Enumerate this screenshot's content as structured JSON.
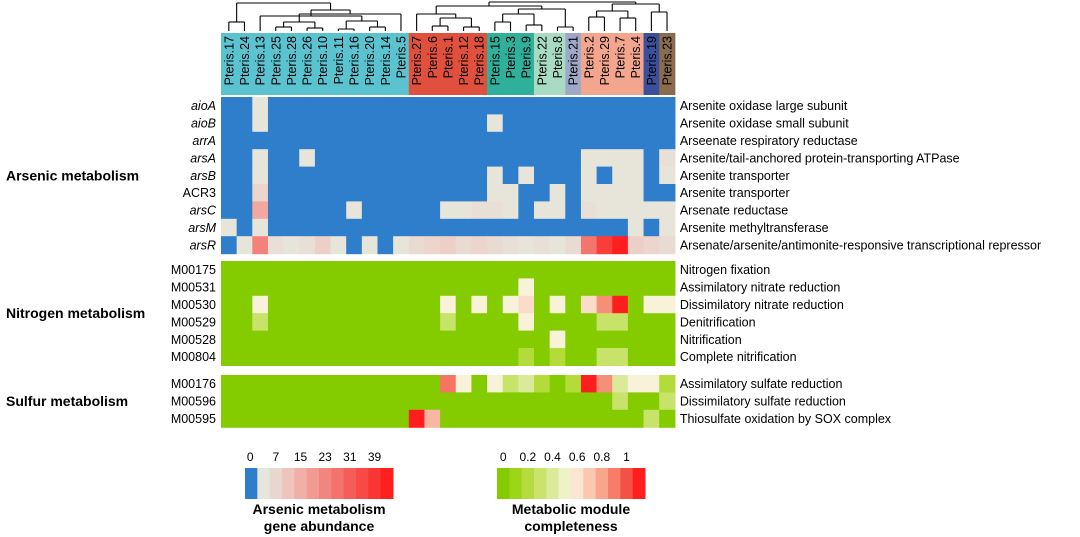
{
  "chart_data": {
    "type": "heatmap",
    "columns": [
      "Pteris.17",
      "Pteris.24",
      "Pteris.13",
      "Pteris.25",
      "Pteris.28",
      "Pteris.26",
      "Pteris.10",
      "Pteris.11",
      "Pteris.16",
      "Pteris.20",
      "Pteris.14",
      "Pteris.5",
      "Pteris.27",
      "Pteris.6",
      "Pteris.1",
      "Pteris.12",
      "Pteris.18",
      "Pteris.15",
      "Pteris.3",
      "Pteris.9",
      "Pteris.22",
      "Pteris.8",
      "Pteris.21",
      "Pteris.2",
      "Pteris.29",
      "Pteris.7",
      "Pteris.4",
      "Pteris.19",
      "Pteris.23"
    ],
    "column_group_colors": [
      "#5bc3cf",
      "#5bc3cf",
      "#5bc3cf",
      "#5bc3cf",
      "#5bc3cf",
      "#5bc3cf",
      "#5bc3cf",
      "#5bc3cf",
      "#5bc3cf",
      "#5bc3cf",
      "#5bc3cf",
      "#5bc3cf",
      "#e0503c",
      "#e0503c",
      "#e0503c",
      "#e0503c",
      "#e0503c",
      "#2fb09a",
      "#2fb09a",
      "#2fb09a",
      "#a8dcc2",
      "#a8dcc2",
      "#9fa8c9",
      "#f3a58e",
      "#f3a58e",
      "#f3a58e",
      "#f3a58e",
      "#3b4f9c",
      "#8a6b4e"
    ],
    "sections": [
      {
        "title": "Arsenic metabolism",
        "scale": "abundance",
        "rows": [
          {
            "id": "aioA",
            "italic": true,
            "description": "Arsenite oxidase large subunit",
            "values": [
              0,
              0,
              2,
              0,
              0,
              0,
              0,
              0,
              0,
              0,
              0,
              0,
              0,
              0,
              0,
              0,
              0,
              0,
              0,
              0,
              0,
              0,
              0,
              0,
              0,
              0,
              0,
              0,
              0
            ]
          },
          {
            "id": "aioB",
            "italic": true,
            "description": "Arsenite oxidase small subunit",
            "values": [
              0,
              0,
              2,
              0,
              0,
              0,
              0,
              0,
              0,
              0,
              0,
              0,
              0,
              0,
              0,
              0,
              0,
              2,
              0,
              0,
              0,
              0,
              0,
              0,
              0,
              0,
              0,
              0,
              0
            ]
          },
          {
            "id": "arrA",
            "italic": true,
            "description": "Arseenate respiratory reductase",
            "values": [
              0,
              0,
              0,
              0,
              0,
              0,
              0,
              0,
              0,
              0,
              0,
              0,
              0,
              0,
              0,
              0,
              0,
              0,
              0,
              0,
              0,
              0,
              0,
              0,
              0,
              0,
              0,
              0,
              0
            ]
          },
          {
            "id": "arsA",
            "italic": true,
            "description": "Arsenite/tail-anchored protein-transporting ATPase",
            "values": [
              0,
              0,
              2,
              0,
              0,
              2,
              0,
              0,
              0,
              0,
              0,
              0,
              0,
              0,
              0,
              0,
              0,
              0,
              0,
              0,
              0,
              0,
              0,
              2,
              2,
              2,
              2,
              0,
              4
            ]
          },
          {
            "id": "arsB",
            "italic": true,
            "description": "Arsenite transporter",
            "values": [
              0,
              0,
              2,
              0,
              0,
              0,
              0,
              0,
              0,
              0,
              0,
              0,
              0,
              0,
              0,
              0,
              0,
              2,
              0,
              2,
              0,
              0,
              0,
              2,
              0,
              2,
              2,
              0,
              2
            ]
          },
          {
            "id": "ACR3",
            "italic": false,
            "description": "Arsenite transporter",
            "values": [
              0,
              0,
              8,
              0,
              0,
              0,
              0,
              0,
              0,
              0,
              0,
              0,
              0,
              0,
              0,
              0,
              0,
              2,
              2,
              0,
              0,
              2,
              0,
              2,
              2,
              2,
              2,
              0,
              0
            ]
          },
          {
            "id": "arsC",
            "italic": true,
            "description": "Arsenate reductase",
            "values": [
              0,
              0,
              22,
              0,
              0,
              0,
              0,
              0,
              2,
              0,
              0,
              0,
              0,
              0,
              2,
              2,
              4,
              4,
              2,
              0,
              2,
              2,
              0,
              4,
              2,
              2,
              2,
              2,
              2
            ]
          },
          {
            "id": "arsM",
            "italic": true,
            "description": "Arsenite methyltransferase",
            "values": [
              2,
              0,
              2,
              0,
              0,
              0,
              0,
              0,
              0,
              0,
              0,
              0,
              0,
              0,
              0,
              0,
              0,
              0,
              0,
              0,
              0,
              0,
              0,
              0,
              0,
              0,
              2,
              0,
              2
            ]
          },
          {
            "id": "arsR",
            "italic": true,
            "description": "Arsenate/arsenite/antimonite-responsive transcriptional repressor",
            "values": [
              0,
              2,
              28,
              4,
              2,
              4,
              10,
              2,
              0,
              2,
              0,
              2,
              6,
              8,
              10,
              6,
              8,
              6,
              4,
              2,
              4,
              2,
              6,
              30,
              36,
              39,
              10,
              8,
              6
            ]
          }
        ]
      },
      {
        "title": "Nitrogen metabolism",
        "scale": "completeness",
        "rows": [
          {
            "id": "M00175",
            "italic": false,
            "description": "Nitrogen fixation",
            "values": [
              0,
              0,
              0,
              0,
              0,
              0,
              0,
              0,
              0,
              0,
              0,
              0,
              0,
              0,
              0,
              0,
              0,
              0,
              0,
              0,
              0,
              0,
              0,
              0,
              0,
              0,
              0,
              0,
              0
            ]
          },
          {
            "id": "M00531",
            "italic": false,
            "description": "Assimilatory nitrate reduction",
            "values": [
              0,
              0,
              0,
              0,
              0,
              0,
              0,
              0,
              0,
              0,
              0,
              0,
              0,
              0,
              0,
              0,
              0,
              0,
              0,
              0.5,
              0,
              0,
              0,
              0,
              0,
              0,
              0,
              0,
              0
            ]
          },
          {
            "id": "M00530",
            "italic": false,
            "description": "Dissimilatory nitrate reduction",
            "values": [
              0,
              0,
              0.5,
              0,
              0,
              0,
              0,
              0,
              0,
              0,
              0,
              0,
              0,
              0,
              0.5,
              0,
              0.5,
              0,
              0.5,
              0.6,
              0,
              0.5,
              0,
              0.6,
              0.8,
              1,
              0,
              0.5,
              0.5
            ]
          },
          {
            "id": "M00529",
            "italic": false,
            "description": "Denitrification",
            "values": [
              0,
              0,
              0.3,
              0,
              0,
              0,
              0,
              0,
              0,
              0,
              0,
              0,
              0,
              0,
              0.3,
              0,
              0,
              0,
              0,
              0.5,
              0,
              0,
              0,
              0,
              0.3,
              0.3,
              0,
              0,
              0
            ]
          },
          {
            "id": "M00528",
            "italic": false,
            "description": "Nitrification",
            "values": [
              0,
              0,
              0,
              0,
              0,
              0,
              0,
              0,
              0,
              0,
              0,
              0,
              0,
              0,
              0,
              0,
              0,
              0,
              0,
              0,
              0,
              0.5,
              0,
              0,
              0,
              0,
              0,
              0,
              0
            ]
          },
          {
            "id": "M00804",
            "italic": false,
            "description": "Complete nitrification",
            "values": [
              0,
              0,
              0,
              0,
              0,
              0,
              0,
              0,
              0,
              0,
              0,
              0,
              0,
              0,
              0,
              0,
              0,
              0,
              0,
              0.2,
              0,
              0.2,
              0,
              0,
              0.3,
              0.3,
              0,
              0,
              0
            ]
          }
        ]
      },
      {
        "title": "Sulfur metabolism",
        "scale": "completeness",
        "rows": [
          {
            "id": "M00176",
            "italic": false,
            "description": "Assimilatory sulfate reduction",
            "values": [
              0,
              0,
              0,
              0,
              0,
              0,
              0,
              0,
              0,
              0,
              0,
              0,
              0,
              0,
              0.85,
              0.5,
              0,
              0.5,
              0.3,
              0.4,
              0.2,
              0,
              0.2,
              1,
              0.8,
              0.4,
              0.5,
              0.5,
              0.2
            ]
          },
          {
            "id": "M00596",
            "italic": false,
            "description": "Dissimilatory sulfate reduction",
            "values": [
              0,
              0,
              0,
              0,
              0,
              0,
              0,
              0,
              0,
              0,
              0,
              0,
              0,
              0,
              0,
              0,
              0,
              0,
              0,
              0,
              0,
              0,
              0,
              0,
              0,
              0.3,
              0,
              0,
              0.3
            ]
          },
          {
            "id": "M00595",
            "italic": false,
            "description": "Thiosulfate oxidation by SOX complex",
            "values": [
              0,
              0,
              0,
              0,
              0,
              0,
              0,
              0,
              0,
              0,
              0,
              0,
              1,
              0.7,
              0,
              0,
              0,
              0,
              0,
              0,
              0,
              0,
              0,
              0,
              0,
              0,
              0,
              0.3,
              0
            ]
          }
        ]
      }
    ],
    "legends": [
      {
        "title_lines": [
          "Arsenic metabolism",
          "gene abundance"
        ],
        "ticks": [
          "0",
          "7",
          "15",
          "23",
          "31",
          "39"
        ],
        "colors": [
          "#2e7ecb",
          "#e6e6dd",
          "#e9d7cf",
          "#eec4bd",
          "#f0b0a8",
          "#f19b93",
          "#f2867f",
          "#f4726c",
          "#f65d58",
          "#f84946",
          "#fa3634",
          "#ff1f1f"
        ]
      },
      {
        "title_lines": [
          "Metabolic module",
          "completeness"
        ],
        "ticks": [
          "0",
          "0.2",
          "0.4",
          "0.6",
          "0.8",
          "1"
        ],
        "colors": [
          "#84cc00",
          "#9dd519",
          "#b5dc3e",
          "#c9e36b",
          "#dceb9b",
          "#eef2c6",
          "#fbe6d1",
          "#fbc7b0",
          "#f9a58c",
          "#f77d68",
          "#f45146",
          "#ff1e1e"
        ]
      }
    ]
  }
}
